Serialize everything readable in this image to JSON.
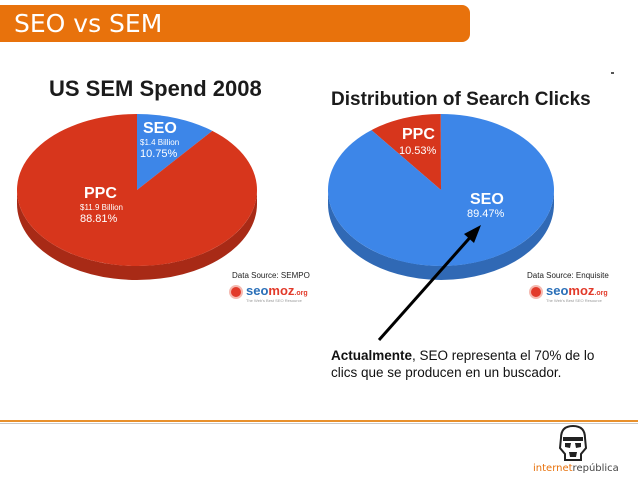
{
  "header": {
    "title": "SEO vs SEM"
  },
  "chart_data": [
    {
      "type": "pie",
      "title": "US SEM Spend 2008",
      "slices": [
        {
          "label": "SEO",
          "amount": "$1.4 Billion",
          "value": 10.75,
          "pct_label": "10.75%",
          "color": "#3d86e8"
        },
        {
          "label": "PPC",
          "amount": "$11.9 Billion",
          "value": 88.81,
          "pct_label": "88.81%",
          "color": "#d7361c"
        }
      ],
      "source": "Data Source: SEMPO",
      "logo": {
        "text_a": "seo",
        "text_b": "moz",
        "text_c": ".org",
        "tagline": "The Web's Best SEO Resource"
      }
    },
    {
      "type": "pie",
      "title": "Distribution of Search Clicks",
      "slices": [
        {
          "label": "PPC",
          "value": 10.53,
          "pct_label": "10.53%",
          "color": "#d7361c"
        },
        {
          "label": "SEO",
          "value": 89.47,
          "pct_label": "89.47%",
          "color": "#3d86e8"
        }
      ],
      "source": "Data Source: Enquisite",
      "logo": {
        "text_a": "seo",
        "text_b": "moz",
        "text_c": ".org",
        "tagline": "The Web's Best SEO Resource"
      }
    }
  ],
  "annotation": {
    "bold": "Actualmente",
    "rest": ", SEO representa el 70% de lo clics que se producen en un buscador."
  },
  "brand": {
    "part1": "internet",
    "part2": "república"
  }
}
